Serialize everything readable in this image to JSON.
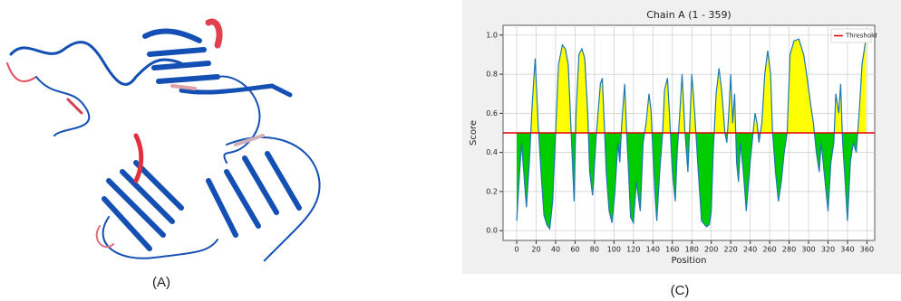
{
  "chart_data": {
    "type": "line",
    "title": "Chain A (1 - 359)",
    "xlabel": "Position",
    "ylabel": "Score",
    "x": [
      0,
      3,
      5,
      8,
      10,
      13,
      16,
      19,
      22,
      25,
      28,
      31,
      34,
      37,
      40,
      43,
      47,
      50,
      53,
      56,
      59,
      61,
      64,
      67,
      70,
      73,
      75,
      78,
      82,
      86,
      88,
      90,
      92,
      95,
      98,
      101,
      104,
      106,
      108,
      111,
      113,
      115,
      117,
      120,
      123,
      127,
      130,
      133,
      136,
      138,
      140,
      142,
      144,
      147,
      150,
      152,
      155,
      157,
      160,
      163,
      165,
      167,
      170,
      173,
      176,
      178,
      180,
      183,
      186,
      190,
      195,
      198,
      200,
      202,
      205,
      208,
      211,
      214,
      216,
      218,
      220,
      222,
      224,
      226,
      228,
      230,
      233,
      236,
      240,
      243,
      245,
      247,
      249,
      252,
      255,
      258,
      261,
      263,
      266,
      269,
      272,
      275,
      278,
      281,
      285,
      290,
      295,
      298,
      302,
      305,
      308,
      311,
      313,
      316,
      320,
      323,
      326,
      328,
      331,
      333,
      335,
      337,
      340,
      343,
      346,
      349,
      352,
      355,
      358,
      359
    ],
    "series": [
      {
        "color": "#1f77b4",
        "values": [
          0.05,
          0.3,
          0.45,
          0.25,
          0.12,
          0.35,
          0.65,
          0.88,
          0.55,
          0.3,
          0.08,
          0.03,
          0.01,
          0.15,
          0.5,
          0.85,
          0.95,
          0.93,
          0.85,
          0.5,
          0.15,
          0.6,
          0.9,
          0.93,
          0.88,
          0.6,
          0.3,
          0.18,
          0.5,
          0.75,
          0.78,
          0.55,
          0.3,
          0.1,
          0.04,
          0.2,
          0.45,
          0.35,
          0.55,
          0.75,
          0.5,
          0.3,
          0.07,
          0.04,
          0.25,
          0.1,
          0.45,
          0.55,
          0.7,
          0.62,
          0.4,
          0.2,
          0.05,
          0.3,
          0.5,
          0.72,
          0.78,
          0.6,
          0.3,
          0.15,
          0.4,
          0.55,
          0.8,
          0.5,
          0.3,
          0.55,
          0.8,
          0.6,
          0.35,
          0.05,
          0.02,
          0.03,
          0.1,
          0.4,
          0.7,
          0.83,
          0.7,
          0.5,
          0.45,
          0.6,
          0.8,
          0.55,
          0.7,
          0.35,
          0.25,
          0.45,
          0.3,
          0.1,
          0.35,
          0.5,
          0.6,
          0.55,
          0.45,
          0.55,
          0.8,
          0.92,
          0.8,
          0.5,
          0.3,
          0.15,
          0.25,
          0.4,
          0.5,
          0.9,
          0.97,
          0.98,
          0.9,
          0.8,
          0.65,
          0.55,
          0.4,
          0.3,
          0.45,
          0.3,
          0.1,
          0.35,
          0.45,
          0.7,
          0.6,
          0.75,
          0.45,
          0.3,
          0.05,
          0.35,
          0.45,
          0.4,
          0.6,
          0.85,
          0.95,
          0.98
        ]
      }
    ],
    "threshold": {
      "name": "Threshold",
      "value": 0.5,
      "color": "#e00000"
    },
    "fill_above": "#ffff00",
    "fill_below": "#00cc00",
    "xlim": [
      -14,
      368
    ],
    "ylim": [
      -0.05,
      1.05
    ],
    "xticks": [
      0,
      20,
      40,
      60,
      80,
      100,
      120,
      140,
      160,
      180,
      200,
      220,
      240,
      260,
      280,
      300,
      320,
      340,
      360
    ],
    "yticks": [
      {
        "value": 0,
        "label": "0.0"
      },
      0.2,
      0.4,
      0.6,
      0.8,
      {
        "value": 1,
        "label": "1.0"
      }
    ],
    "grid": true,
    "legend": "upper right"
  },
  "captions": [
    "(A)",
    "(C)"
  ]
}
